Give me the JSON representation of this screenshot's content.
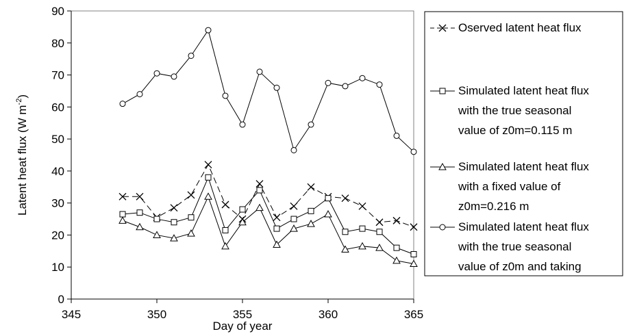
{
  "chart_data": {
    "type": "line",
    "title": "",
    "xlabel": "Day of year",
    "ylabel_main": "Latent heat flux (W m",
    "ylabel_sup": "-2",
    "ylabel_tail": ")",
    "xlim": [
      345,
      365
    ],
    "ylim": [
      0,
      90
    ],
    "x_ticks": [
      345,
      350,
      355,
      360,
      365
    ],
    "y_ticks": [
      0,
      10,
      20,
      30,
      40,
      50,
      60,
      70,
      80,
      90
    ],
    "grid": false,
    "legend_position": "right",
    "x": [
      348,
      349,
      350,
      351,
      352,
      353,
      354,
      355,
      356,
      357,
      358,
      359,
      360,
      361,
      362,
      363,
      364,
      365
    ],
    "series": [
      {
        "name": "Oserved latent heat flux",
        "marker": "x",
        "line_style": "dashed",
        "values": [
          32,
          32,
          25.5,
          28.5,
          32.5,
          42,
          29.5,
          25,
          36,
          25.5,
          29,
          35,
          32,
          31.5,
          29,
          24,
          24.5,
          22.5
        ],
        "legend_lines": [
          "Oserved latent heat flux"
        ]
      },
      {
        "name": "Simulated latent heat flux with the true seasonal value of z0m=0.115 m",
        "marker": "square",
        "line_style": "solid",
        "values": [
          26.5,
          27,
          25,
          24,
          25.5,
          38,
          21.5,
          28,
          34,
          22,
          25,
          27.5,
          31.5,
          21,
          22,
          21,
          16,
          14
        ],
        "legend_lines": [
          "Simulated latent heat flux",
          "with the true seasonal",
          "value of z0m=0.115 m"
        ]
      },
      {
        "name": "Simulated latent heat flux with a fixed value of z0m=0.216 m",
        "marker": "triangle",
        "line_style": "solid",
        "values": [
          24.5,
          22.5,
          20,
          19,
          20.5,
          32,
          16.5,
          24,
          28.5,
          17,
          22,
          23.5,
          26.5,
          15.5,
          16.5,
          16,
          12,
          11
        ],
        "legend_lines": [
          "Simulated latent heat flux",
          "with a fixed value of",
          "z0m=0.216 m"
        ]
      },
      {
        "name": "Simulated latent heat flux with the true seasonal value of z0m and taking",
        "marker": "circle",
        "line_style": "solid",
        "values": [
          61,
          64,
          70.5,
          69.5,
          76,
          84,
          63.5,
          54.5,
          71,
          66,
          46.5,
          54.5,
          67.5,
          66.5,
          69,
          67,
          51,
          46
        ],
        "legend_lines": [
          "Simulated latent heat flux",
          "with the true seasonal",
          "value of z0m and taking"
        ]
      }
    ]
  }
}
